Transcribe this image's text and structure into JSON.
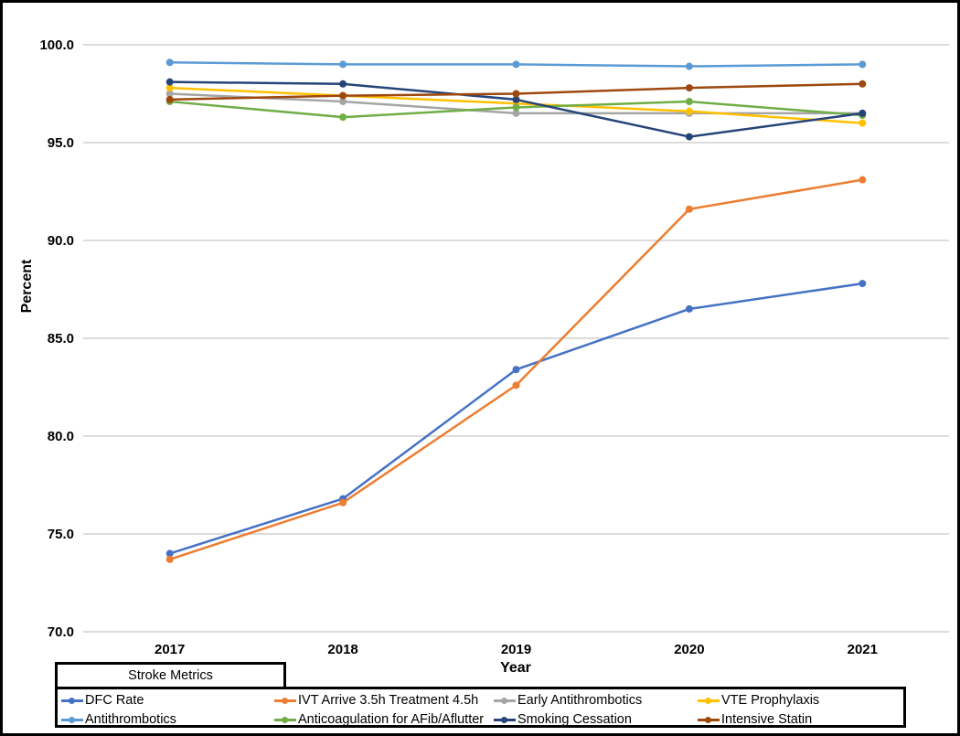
{
  "figure": {
    "frame_color": "#000000",
    "background": "#ffffff",
    "gridline_color": "#dcdcdc"
  },
  "chart_data": {
    "type": "line",
    "title": "",
    "xlabel": "Year",
    "ylabel": "Percent",
    "x": [
      "2017",
      "2018",
      "2019",
      "2020",
      "2021"
    ],
    "ylim": [
      70,
      100
    ],
    "ytick_step": 5,
    "ytick_labels": [
      "100.0",
      "95.0",
      "90.0",
      "85.0",
      "80.0",
      "75.0",
      "70.0"
    ],
    "grid": true,
    "legend_title": "Stroke Metrics",
    "legend_position": "bottom",
    "series": [
      {
        "name": "DFC Rate",
        "color": "#4472C4",
        "values": [
          74.0,
          76.8,
          83.4,
          86.5,
          87.8
        ]
      },
      {
        "name": "IVT Arrive 3.5h Treatment 4.5h",
        "color": "#ED7D31",
        "values": [
          73.7,
          76.6,
          82.6,
          91.6,
          93.1
        ]
      },
      {
        "name": "Early Antithrombotics",
        "color": "#A5A5A5",
        "values": [
          97.5,
          97.1,
          96.5,
          96.5,
          96.5
        ]
      },
      {
        "name": "VTE Prophylaxis",
        "color": "#FFC000",
        "values": [
          97.8,
          97.4,
          97.0,
          96.6,
          96.0
        ]
      },
      {
        "name": "Antithrombotics",
        "color": "#5B9BD5",
        "values": [
          99.1,
          99.0,
          99.0,
          98.9,
          99.0
        ]
      },
      {
        "name": "Anticoagulation for AFib/Aflutter",
        "color": "#70AD47",
        "values": [
          97.1,
          96.3,
          96.8,
          97.1,
          96.4
        ]
      },
      {
        "name": "Smoking Cessation",
        "color": "#264478",
        "values": [
          98.1,
          98.0,
          97.2,
          95.3,
          96.5
        ]
      },
      {
        "name": "Intensive Statin",
        "color": "#9E480E",
        "values": [
          97.2,
          97.4,
          97.5,
          97.8,
          98.0
        ]
      }
    ],
    "legend_rows": [
      [
        0,
        1,
        2,
        3
      ],
      [
        4,
        5,
        6,
        7
      ]
    ]
  }
}
